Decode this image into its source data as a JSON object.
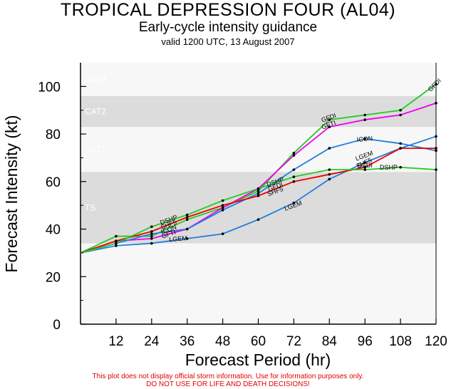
{
  "title": "TROPICAL DEPRESSION FOUR (AL04)",
  "subtitle": "Early-cycle intensity guidance",
  "valid": "valid 1200 UTC, 13 August 2007",
  "disclaimer1": "This plot does not display official storm information. Use for information purposes only.",
  "disclaimer2": "DO NOT USE FOR LIFE AND DEATH DECISIONS!",
  "chart_data": {
    "type": "line",
    "xlabel": "Forecast Period (hr)",
    "ylabel": "Forecast Intensity (kt)",
    "xlim": [
      0,
      120
    ],
    "ylim": [
      0,
      110
    ],
    "xticks": [
      12,
      24,
      36,
      48,
      60,
      72,
      84,
      96,
      108,
      120
    ],
    "yticks": [
      0,
      20,
      40,
      60,
      80,
      100
    ],
    "bands": [
      {
        "label": "TS",
        "from": 34,
        "to": 64,
        "color": "#dcdcdc"
      },
      {
        "label": "CAT1",
        "from": 64,
        "to": 83,
        "color": "#f7f7f7"
      },
      {
        "label": "CAT2",
        "from": 83,
        "to": 96,
        "color": "#dcdcdc"
      },
      {
        "label": "CAT3",
        "from": 96,
        "to": 110,
        "color": "#f7f7f7"
      }
    ],
    "x": [
      0,
      12,
      24,
      36,
      48,
      60,
      72,
      84,
      96,
      108,
      120
    ],
    "series": [
      {
        "name": "GFDI",
        "color": "#22cc22",
        "values": [
          30,
          37,
          37,
          44,
          49,
          56,
          72,
          86,
          88,
          90,
          101
        ]
      },
      {
        "name": "GFTI",
        "color": "#ee00ee",
        "values": [
          30,
          35,
          36,
          40,
          49,
          57,
          71,
          83,
          86,
          88,
          93
        ]
      },
      {
        "name": "ICON",
        "color": "#1e7fe0",
        "values": [
          30,
          34,
          38,
          40,
          48,
          55,
          65,
          74,
          78,
          76,
          73
        ]
      },
      {
        "name": "LGEM",
        "color": "#1e7fe0",
        "values": [
          30,
          33,
          34,
          36,
          38,
          44,
          51,
          61,
          68,
          74,
          79
        ]
      },
      {
        "name": "SHF5",
        "color": "#ee0000",
        "values": [
          30,
          35,
          39,
          45,
          50,
          54,
          60,
          63,
          66,
          74,
          74
        ]
      },
      {
        "name": "DSHP",
        "color": "#22cc22",
        "values": [
          30,
          34,
          41,
          46,
          52,
          57,
          62,
          65,
          65,
          66,
          65
        ]
      }
    ],
    "labels": [
      {
        "text": "GFDI",
        "x": 120,
        "y": 100,
        "rot": -45
      },
      {
        "text": "GFDI",
        "x": 84,
        "y": 86,
        "rot": -20
      },
      {
        "text": "GFTI",
        "x": 84,
        "y": 83,
        "rot": -20
      },
      {
        "text": "ICON",
        "x": 96,
        "y": 77,
        "rot": -5
      },
      {
        "text": "LGEM",
        "x": 96,
        "y": 70,
        "rot": -20
      },
      {
        "text": "SHF5",
        "x": 96,
        "y": 67,
        "rot": -25
      },
      {
        "text": "GFDI",
        "x": 96,
        "y": 66,
        "rot": 0
      },
      {
        "text": "DSHP",
        "x": 104,
        "y": 65,
        "rot": 0
      },
      {
        "text": "LGEM",
        "x": 72,
        "y": 49,
        "rot": -20
      },
      {
        "text": "LGEM",
        "x": 33,
        "y": 35,
        "rot": -5
      },
      {
        "text": "DSHP",
        "x": 30,
        "y": 43,
        "rot": -20
      },
      {
        "text": "SHF5",
        "x": 30,
        "y": 41,
        "rot": -20
      },
      {
        "text": "ICON",
        "x": 30,
        "y": 39,
        "rot": -20
      },
      {
        "text": "GFTI",
        "x": 30,
        "y": 37,
        "rot": -20
      },
      {
        "text": "GFDI",
        "x": 66,
        "y": 57,
        "rot": -20
      },
      {
        "text": "SHF5",
        "x": 66,
        "y": 55,
        "rot": -20
      },
      {
        "text": "DSHP",
        "x": 66,
        "y": 59,
        "rot": -20
      }
    ]
  }
}
